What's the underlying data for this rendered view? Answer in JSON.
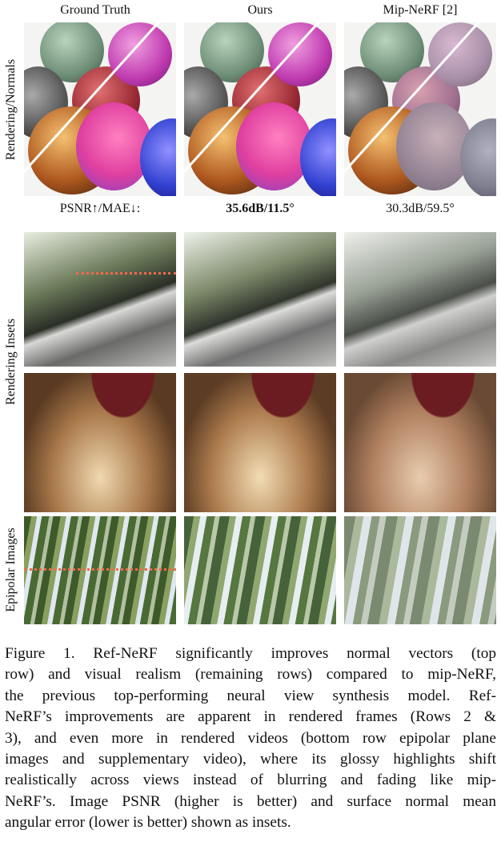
{
  "columns": [
    "Ground Truth",
    "Ours",
    "Mip-NeRF [2]"
  ],
  "row_labels": [
    "Rendering/Normals",
    "Rendering Insets",
    "Epipolar Images"
  ],
  "metrics": {
    "label": "PSNR↑/MAE↓:",
    "ours": "35.6dB/11.5°",
    "mipnerf": "30.3dB/59.5°"
  },
  "caption": [
    "Figure 1. Ref-NeRF significantly improves normal vectors (top",
    "row) and visual realism (remaining rows) compared to mip-NeRF,",
    "the previous top-performing neural view synthesis model. Ref-",
    "NeRF’s improvements are apparent in rendered frames (Rows 2 &",
    "3), and even more in rendered videos (bottom row epipolar plane",
    "images and supplementary video), where its glossy highlights shift",
    "realistically across views instead of blurring and fading like mip-",
    "NeRF’s. Image PSNR (higher is better) and surface normal mean",
    "angular error (lower is better) shown as insets."
  ]
}
